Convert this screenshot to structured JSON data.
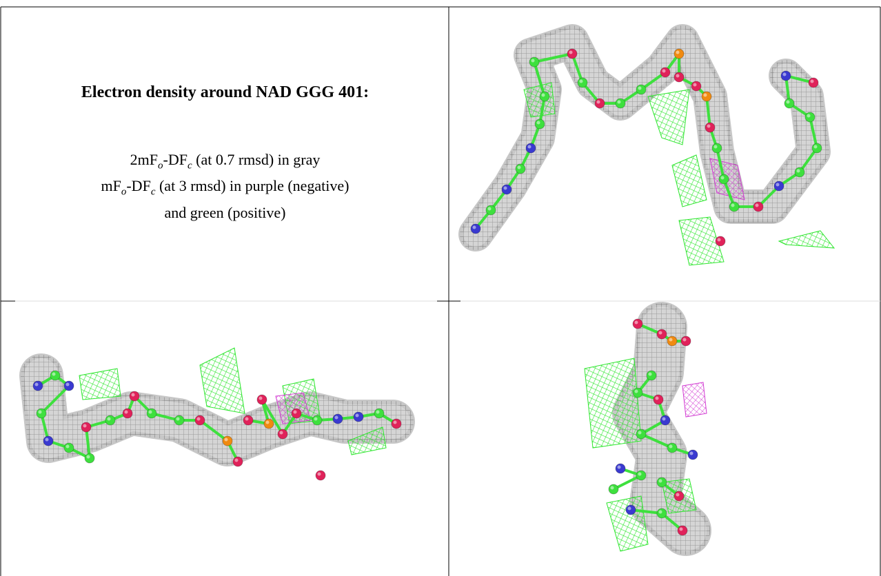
{
  "legend": {
    "title": "Electron density around NAD GGG 401:",
    "lines": [
      [
        "2mF",
        "o",
        "-DF",
        "c",
        " (at 0.7 rmsd) in gray"
      ],
      [
        "mF",
        "o",
        "-DF",
        "c",
        " (at 3 rmsd) in purple (negative)"
      ],
      [
        "and green (positive)"
      ]
    ]
  }
}
